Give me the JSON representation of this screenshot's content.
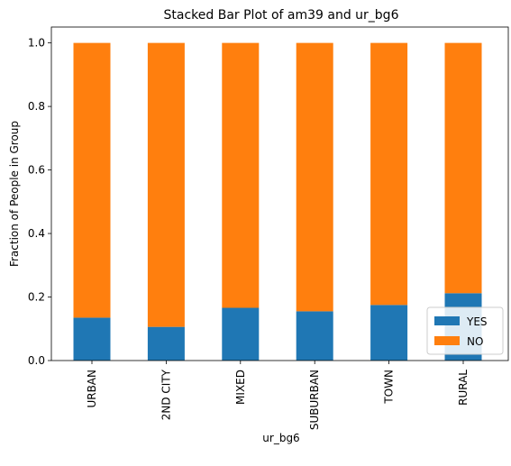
{
  "chart_data": {
    "type": "bar",
    "stacked": true,
    "title": "Stacked Bar Plot of am39 and ur_bg6",
    "xlabel": "ur_bg6",
    "ylabel": "Fraction of People in Group",
    "categories": [
      "URBAN",
      "2ND CITY",
      "MIXED",
      "SUBURBAN",
      "TOWN",
      "RURAL"
    ],
    "series": [
      {
        "name": "YES",
        "color": "#1f77b4",
        "values": [
          0.135,
          0.106,
          0.166,
          0.155,
          0.175,
          0.212
        ]
      },
      {
        "name": "NO",
        "color": "#ff7f0e",
        "values": [
          0.865,
          0.894,
          0.834,
          0.845,
          0.825,
          0.788
        ]
      }
    ],
    "ylim": [
      0,
      1.05
    ],
    "yticks": [
      "0.0",
      "0.2",
      "0.4",
      "0.6",
      "0.8",
      "1.0"
    ],
    "grid": false,
    "legend_position": "lower-right"
  }
}
